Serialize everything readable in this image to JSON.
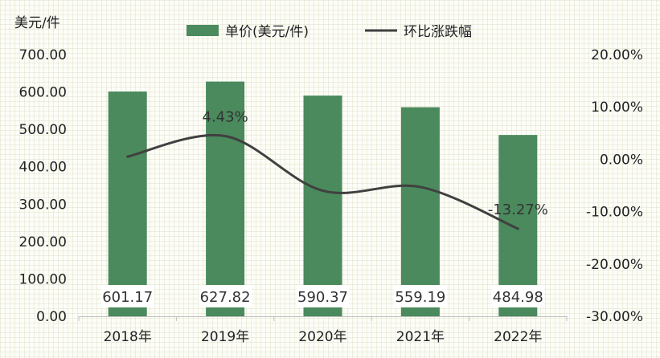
{
  "chart_data": {
    "type": "bar",
    "categories": [
      "2018年",
      "2019年",
      "2020年",
      "2021年",
      "2022年"
    ],
    "series": [
      {
        "name": "单价(美元/件)",
        "type": "bar",
        "axis": "left",
        "values": [
          601.17,
          627.82,
          590.37,
          559.19,
          484.98
        ],
        "value_labels": [
          "601.17",
          "627.82",
          "590.37",
          "559.19",
          "484.98"
        ],
        "color": "#4a8a5c"
      },
      {
        "name": "环比涨跌幅",
        "type": "line",
        "axis": "right",
        "smooth": true,
        "values": [
          0.5,
          4.43,
          -6.0,
          -5.3,
          -13.27
        ],
        "color": "#404040"
      }
    ],
    "line_annotations": [
      {
        "index": 1,
        "text": "4.43%"
      },
      {
        "index": 4,
        "text": "-13.27%"
      }
    ],
    "ylabel": "美元/件",
    "ylim": [
      0,
      700
    ],
    "yticks": [
      "0.00",
      "100.00",
      "200.00",
      "300.00",
      "400.00",
      "500.00",
      "600.00",
      "700.00"
    ],
    "y2lim": [
      -30,
      20
    ],
    "y2ticks": [
      "-30.00%",
      "-20.00%",
      "-10.00%",
      "0.00%",
      "10.00%",
      "20.00%"
    ],
    "legend_position": "top",
    "grid": false
  }
}
